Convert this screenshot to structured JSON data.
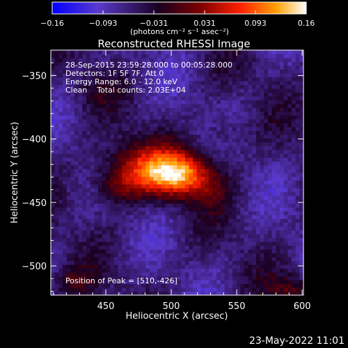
{
  "chart_data": {
    "type": "heatmap",
    "title": "Reconstructed RHESSI Image",
    "xlabel": "Heliocentric X (arcsec)",
    "ylabel": "Heliocentric Y (arcsec)",
    "xlim": [
      408,
      601
    ],
    "ylim": [
      -523,
      -330
    ],
    "x_ticks": [
      450,
      500,
      550,
      600
    ],
    "y_ticks": [
      -500,
      -450,
      -400,
      -350
    ],
    "colorbar": {
      "range": [
        -0.16,
        0.16
      ],
      "tick_labels": [
        "-0.16",
        "-0.093",
        "-0.031",
        "0.031",
        "0.093",
        "0.16"
      ],
      "unit_label": "(photons cm⁻² s⁻¹ asec⁻²)",
      "colors": [
        "#0000ff",
        "#5a3acc",
        "#1a0020",
        "#7a0000",
        "#ff2000",
        "#ff9f00",
        "#ffffff"
      ]
    },
    "annotations": [
      "28-Sep-2015 23:59:28.000 to 00:05:28.000",
      "Detectors: 1F 5F 7F, Att 0",
      "Energy Range: 6.0 - 12.0 keV",
      "Clean    Total counts: 2.03E+04"
    ],
    "peak_label": "Position of Peak = [510,-426]",
    "peak": {
      "x": 510,
      "y": -426,
      "value": 0.16
    },
    "sources": [
      {
        "x": 507,
        "y": -428,
        "sx": 18,
        "sy": 12,
        "amp": 0.165
      },
      {
        "x": 478,
        "y": -422,
        "sx": 22,
        "sy": 14,
        "amp": 0.1
      },
      {
        "x": 458,
        "y": -438,
        "sx": 13,
        "sy": 10,
        "amp": 0.06
      },
      {
        "x": 540,
        "y": -395,
        "sx": 10,
        "sy": 10,
        "amp": 0.035
      },
      {
        "x": 532,
        "y": -445,
        "sx": 12,
        "sy": 10,
        "amp": 0.025
      },
      {
        "x": 592,
        "y": -518,
        "sx": 12,
        "sy": 8,
        "amp": 0.06
      },
      {
        "x": 425,
        "y": -512,
        "sx": 12,
        "sy": 8,
        "amp": 0.045
      },
      {
        "x": 445,
        "y": -362,
        "sx": 12,
        "sy": 10,
        "amp": 0.02
      }
    ]
  },
  "footer_date": "23-May-2022 11:01"
}
